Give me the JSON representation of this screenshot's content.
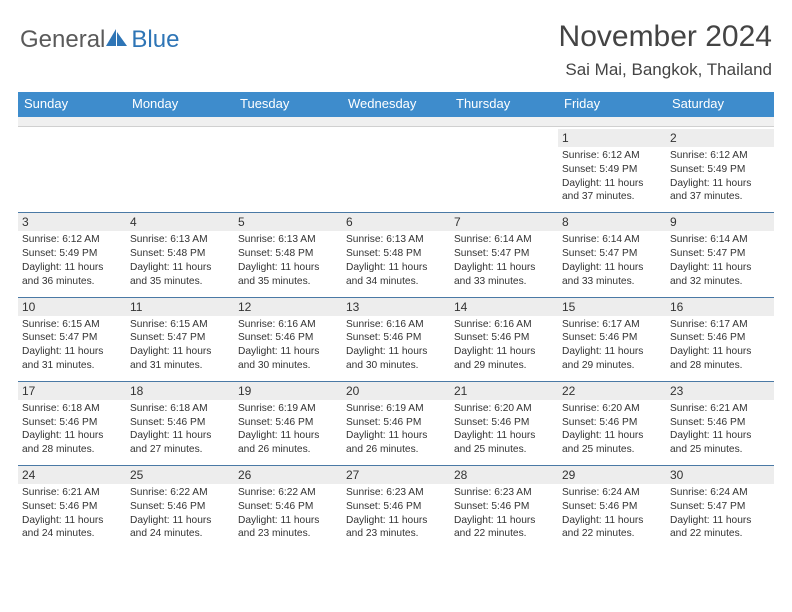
{
  "brand": {
    "text1": "General",
    "text2": "Blue"
  },
  "title": "November 2024",
  "location": "Sai Mai, Bangkok, Thailand",
  "colors": {
    "header_bg": "#3e8ccc",
    "daynum_bg": "#ededed",
    "daynum_border": "#4a79a5",
    "brand_blue": "#2e75b6"
  },
  "dayNames": [
    "Sunday",
    "Monday",
    "Tuesday",
    "Wednesday",
    "Thursday",
    "Friday",
    "Saturday"
  ],
  "weeks": [
    [
      null,
      null,
      null,
      null,
      null,
      {
        "d": "1",
        "sr": "6:12 AM",
        "ss": "5:49 PM",
        "dl": "11 hours and 37 minutes."
      },
      {
        "d": "2",
        "sr": "6:12 AM",
        "ss": "5:49 PM",
        "dl": "11 hours and 37 minutes."
      }
    ],
    [
      {
        "d": "3",
        "sr": "6:12 AM",
        "ss": "5:49 PM",
        "dl": "11 hours and 36 minutes."
      },
      {
        "d": "4",
        "sr": "6:13 AM",
        "ss": "5:48 PM",
        "dl": "11 hours and 35 minutes."
      },
      {
        "d": "5",
        "sr": "6:13 AM",
        "ss": "5:48 PM",
        "dl": "11 hours and 35 minutes."
      },
      {
        "d": "6",
        "sr": "6:13 AM",
        "ss": "5:48 PM",
        "dl": "11 hours and 34 minutes."
      },
      {
        "d": "7",
        "sr": "6:14 AM",
        "ss": "5:47 PM",
        "dl": "11 hours and 33 minutes."
      },
      {
        "d": "8",
        "sr": "6:14 AM",
        "ss": "5:47 PM",
        "dl": "11 hours and 33 minutes."
      },
      {
        "d": "9",
        "sr": "6:14 AM",
        "ss": "5:47 PM",
        "dl": "11 hours and 32 minutes."
      }
    ],
    [
      {
        "d": "10",
        "sr": "6:15 AM",
        "ss": "5:47 PM",
        "dl": "11 hours and 31 minutes."
      },
      {
        "d": "11",
        "sr": "6:15 AM",
        "ss": "5:47 PM",
        "dl": "11 hours and 31 minutes."
      },
      {
        "d": "12",
        "sr": "6:16 AM",
        "ss": "5:46 PM",
        "dl": "11 hours and 30 minutes."
      },
      {
        "d": "13",
        "sr": "6:16 AM",
        "ss": "5:46 PM",
        "dl": "11 hours and 30 minutes."
      },
      {
        "d": "14",
        "sr": "6:16 AM",
        "ss": "5:46 PM",
        "dl": "11 hours and 29 minutes."
      },
      {
        "d": "15",
        "sr": "6:17 AM",
        "ss": "5:46 PM",
        "dl": "11 hours and 29 minutes."
      },
      {
        "d": "16",
        "sr": "6:17 AM",
        "ss": "5:46 PM",
        "dl": "11 hours and 28 minutes."
      }
    ],
    [
      {
        "d": "17",
        "sr": "6:18 AM",
        "ss": "5:46 PM",
        "dl": "11 hours and 28 minutes."
      },
      {
        "d": "18",
        "sr": "6:18 AM",
        "ss": "5:46 PM",
        "dl": "11 hours and 27 minutes."
      },
      {
        "d": "19",
        "sr": "6:19 AM",
        "ss": "5:46 PM",
        "dl": "11 hours and 26 minutes."
      },
      {
        "d": "20",
        "sr": "6:19 AM",
        "ss": "5:46 PM",
        "dl": "11 hours and 26 minutes."
      },
      {
        "d": "21",
        "sr": "6:20 AM",
        "ss": "5:46 PM",
        "dl": "11 hours and 25 minutes."
      },
      {
        "d": "22",
        "sr": "6:20 AM",
        "ss": "5:46 PM",
        "dl": "11 hours and 25 minutes."
      },
      {
        "d": "23",
        "sr": "6:21 AM",
        "ss": "5:46 PM",
        "dl": "11 hours and 25 minutes."
      }
    ],
    [
      {
        "d": "24",
        "sr": "6:21 AM",
        "ss": "5:46 PM",
        "dl": "11 hours and 24 minutes."
      },
      {
        "d": "25",
        "sr": "6:22 AM",
        "ss": "5:46 PM",
        "dl": "11 hours and 24 minutes."
      },
      {
        "d": "26",
        "sr": "6:22 AM",
        "ss": "5:46 PM",
        "dl": "11 hours and 23 minutes."
      },
      {
        "d": "27",
        "sr": "6:23 AM",
        "ss": "5:46 PM",
        "dl": "11 hours and 23 minutes."
      },
      {
        "d": "28",
        "sr": "6:23 AM",
        "ss": "5:46 PM",
        "dl": "11 hours and 22 minutes."
      },
      {
        "d": "29",
        "sr": "6:24 AM",
        "ss": "5:46 PM",
        "dl": "11 hours and 22 minutes."
      },
      {
        "d": "30",
        "sr": "6:24 AM",
        "ss": "5:47 PM",
        "dl": "11 hours and 22 minutes."
      }
    ]
  ],
  "labels": {
    "sunrise": "Sunrise: ",
    "sunset": "Sunset: ",
    "daylight": "Daylight: "
  }
}
